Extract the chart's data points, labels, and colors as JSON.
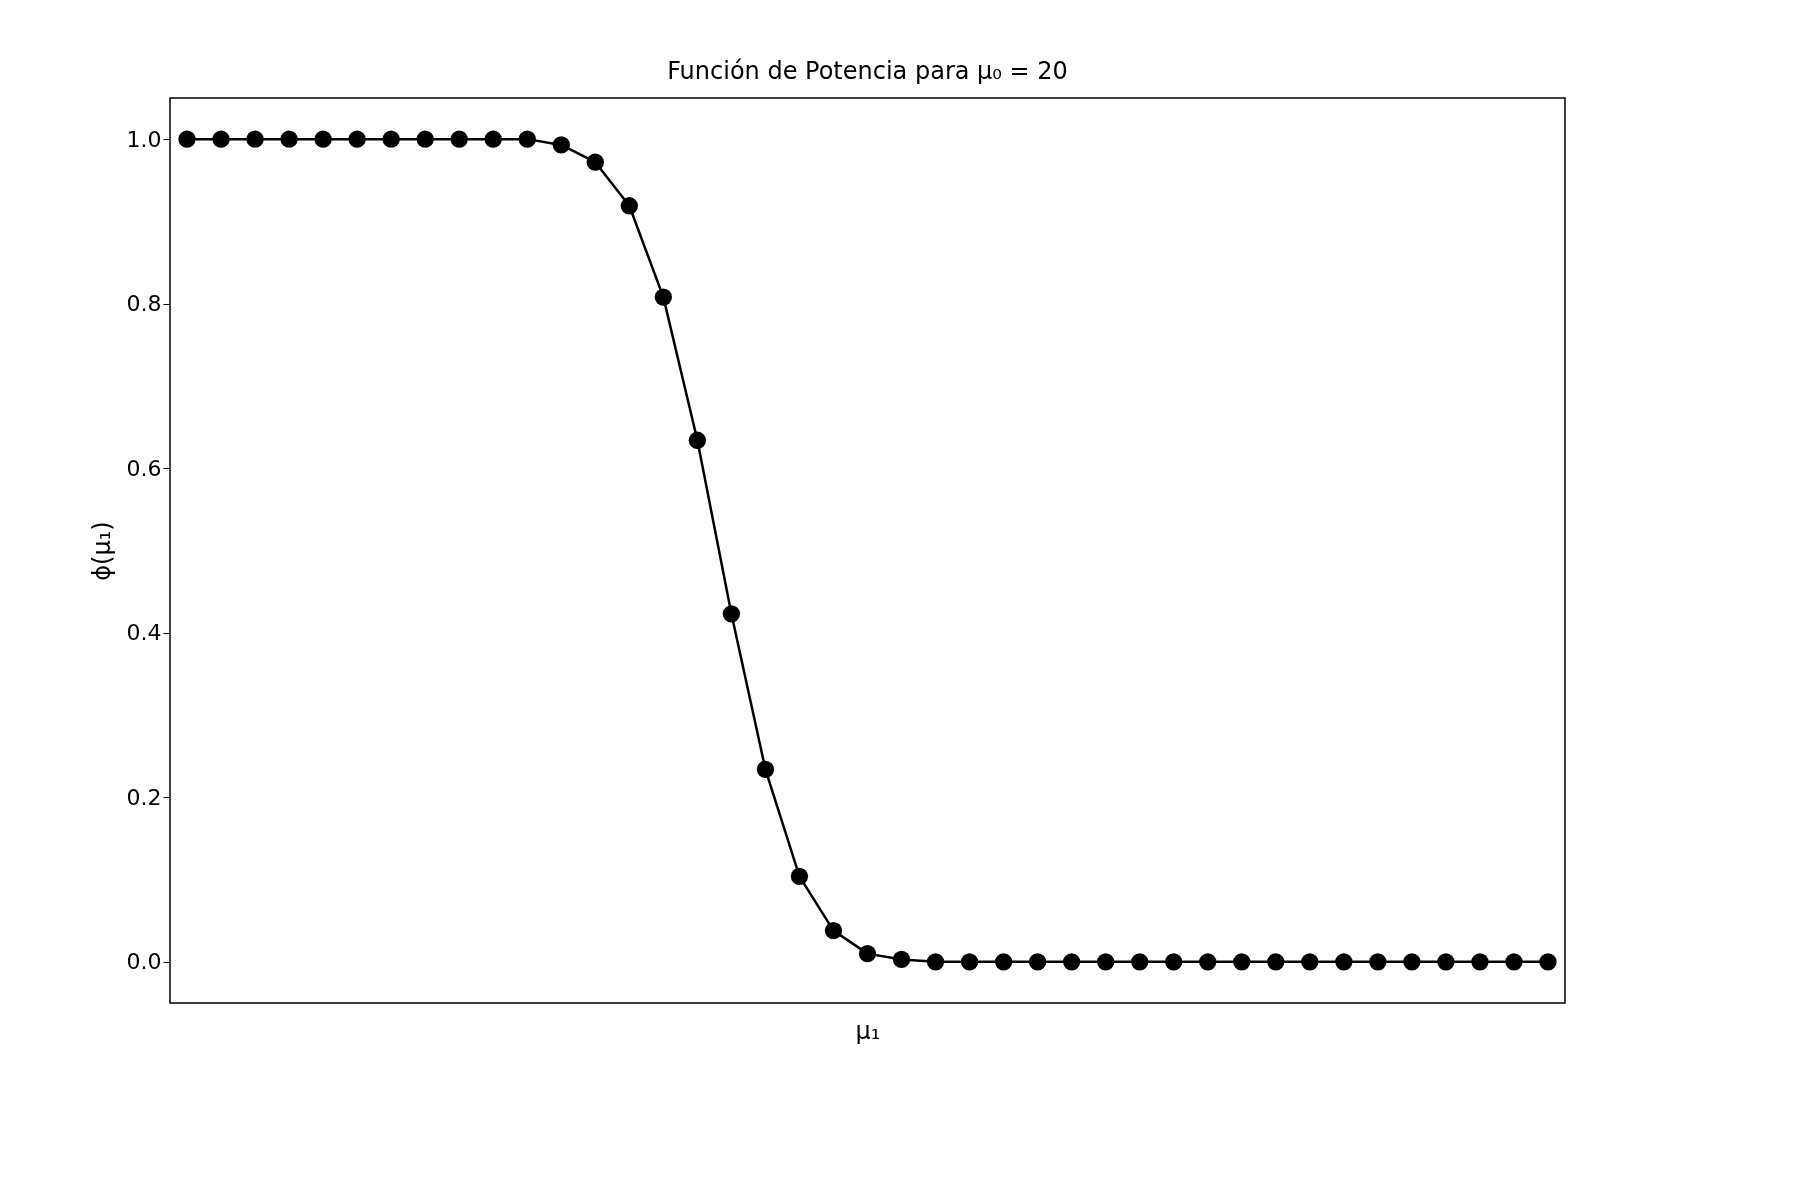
{
  "chart_data": {
    "type": "line",
    "title": "Función de Potencia para μ₀ = 20",
    "xlabel": "μ₁",
    "ylabel": "ϕ(μ₁)",
    "categories": [
      null,
      null,
      null,
      null,
      null,
      null,
      null,
      null,
      null,
      null,
      null,
      null,
      null,
      null,
      null,
      null,
      null,
      null,
      null,
      null,
      null,
      null,
      null,
      null,
      null,
      null,
      null,
      null,
      null,
      null,
      null,
      null,
      null,
      null,
      null,
      null,
      null,
      null,
      null,
      null,
      null
    ],
    "series": [
      {
        "color": "#000000",
        "values": [
          1.0,
          1.0,
          1.0,
          1.0,
          1.0,
          1.0,
          1.0,
          1.0,
          1.0,
          1.0,
          1.0,
          0.993,
          0.972,
          0.919,
          0.808,
          0.634,
          0.423,
          0.234,
          0.104,
          0.038,
          0.01,
          0.003,
          0.0,
          0.0,
          0.0,
          0.0,
          0.0,
          0.0,
          0.0,
          0.0,
          0.0,
          0.0,
          0.0,
          0.0,
          0.0,
          0.0,
          0.0,
          0.0,
          0.0,
          0.0,
          0.0
        ]
      }
    ],
    "ylim": [
      -0.05,
      1.05
    ],
    "yticks": [
      {
        "value": 0,
        "label": "0.0"
      },
      0.2,
      0.4,
      0.6,
      0.8,
      {
        "value": 1,
        "label": "1.0"
      }
    ],
    "tick_labels": "y",
    "grid": false,
    "marker": "circle",
    "line_style": "solid"
  }
}
